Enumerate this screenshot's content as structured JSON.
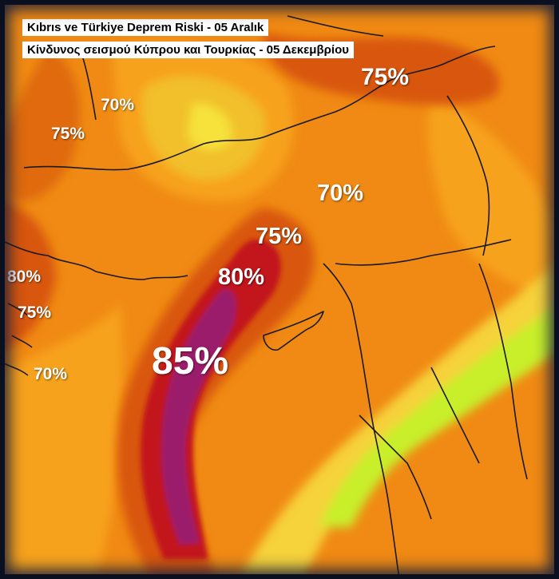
{
  "title_tr": "Kıbrıs ve Türkiye Deprem Riski - 05 Aralık",
  "title_gr": "Κίνδυνος σεισμού Κύπρου και Τουρκίας - 05 Δεκεμβρίου",
  "labels": [
    {
      "text": "75%"
    },
    {
      "text": "70%"
    },
    {
      "text": "75%"
    },
    {
      "text": "70%"
    },
    {
      "text": "75%"
    },
    {
      "text": "80%"
    },
    {
      "text": "80%"
    },
    {
      "text": "75%"
    },
    {
      "text": "85%"
    },
    {
      "text": "70%"
    }
  ],
  "colors": {
    "base_orange": "#f08a14",
    "light_orange": "#f7a21c",
    "yellow": "#f6d23a",
    "lime": "#c8ef2a",
    "dark_orange": "#d8560e",
    "red": "#c2181a",
    "magenta": "#9b1a6b"
  }
}
